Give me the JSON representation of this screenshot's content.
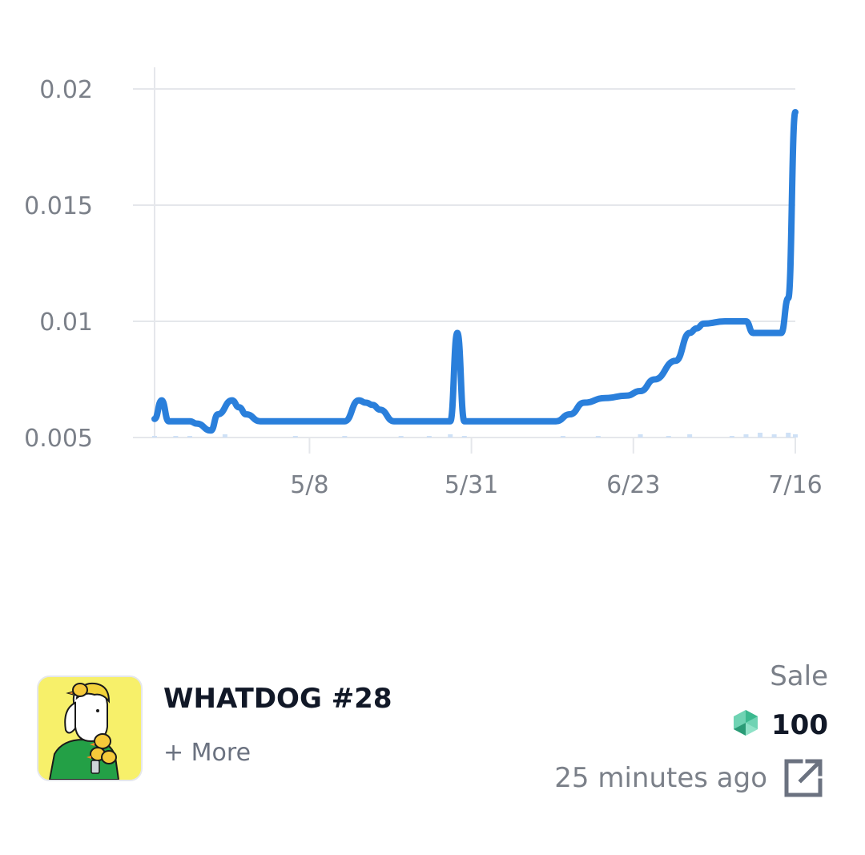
{
  "chart_data": {
    "type": "line",
    "ylim": [
      0.005,
      0.021
    ],
    "y_ticks": [
      "0.02",
      "0.015",
      "0.01",
      "0.005"
    ],
    "x_ticks": [
      "5/8",
      "5/31",
      "6/23",
      "7/16"
    ],
    "grid": true,
    "line_color": "#2a7fdb",
    "series": [
      {
        "x": [
          "4/16",
          "4/17",
          "4/18",
          "4/19",
          "4/21",
          "4/22",
          "4/24",
          "4/25",
          "4/27",
          "4/28",
          "4/29",
          "5/1",
          "5/3",
          "5/6",
          "5/9",
          "5/13",
          "5/15",
          "5/16",
          "5/17",
          "5/18",
          "5/20",
          "5/21",
          "5/22",
          "5/23",
          "5/24",
          "5/25",
          "5/28",
          "5/29",
          "5/30",
          "5/31",
          "6/1",
          "6/3",
          "6/6",
          "6/9",
          "6/12",
          "6/14",
          "6/16",
          "6/19",
          "6/22",
          "6/24",
          "6/26",
          "6/29",
          "7/1",
          "7/2",
          "7/3",
          "7/6",
          "7/9",
          "7/10",
          "7/11",
          "7/12",
          "7/14",
          "7/15",
          "7/16"
        ],
        "values": [
          0.0058,
          0.0066,
          0.0057,
          0.0057,
          0.0057,
          0.0056,
          0.0053,
          0.006,
          0.0066,
          0.0063,
          0.006,
          0.0057,
          0.0057,
          0.0057,
          0.0057,
          0.0057,
          0.0066,
          0.0065,
          0.0064,
          0.0062,
          0.0057,
          0.0057,
          0.0057,
          0.0057,
          0.0057,
          0.0057,
          0.0057,
          0.0095,
          0.0057,
          0.0057,
          0.0057,
          0.0057,
          0.0057,
          0.0057,
          0.0057,
          0.006,
          0.0065,
          0.0067,
          0.0068,
          0.007,
          0.0075,
          0.0083,
          0.0095,
          0.0097,
          0.0099,
          0.01,
          0.01,
          0.0095,
          0.0095,
          0.0095,
          0.0095,
          0.011,
          0.019
        ]
      }
    ],
    "volume_bar_color": "#cfe1f6",
    "volume_x": [
      "4/16",
      "4/19",
      "4/21",
      "4/26",
      "5/6",
      "5/13",
      "5/21",
      "5/25",
      "5/28",
      "5/30",
      "6/13",
      "6/18",
      "6/24",
      "6/28",
      "7/1",
      "7/7",
      "7/9",
      "7/11",
      "7/13",
      "7/15",
      "7/16"
    ],
    "volume": [
      1,
      1,
      1,
      2,
      1,
      1,
      1,
      1,
      2,
      1,
      1,
      1,
      2,
      1,
      2,
      1,
      2,
      3,
      2,
      3,
      2
    ]
  },
  "activity": {
    "item_name": "WHATDOG #28",
    "more_label": "+ More",
    "event_type": "Sale",
    "price": "100",
    "time": "25 minutes ago",
    "token_icon": "klay-token-icon",
    "link_icon": "external-link-icon",
    "token_color": "#3bb98f"
  }
}
